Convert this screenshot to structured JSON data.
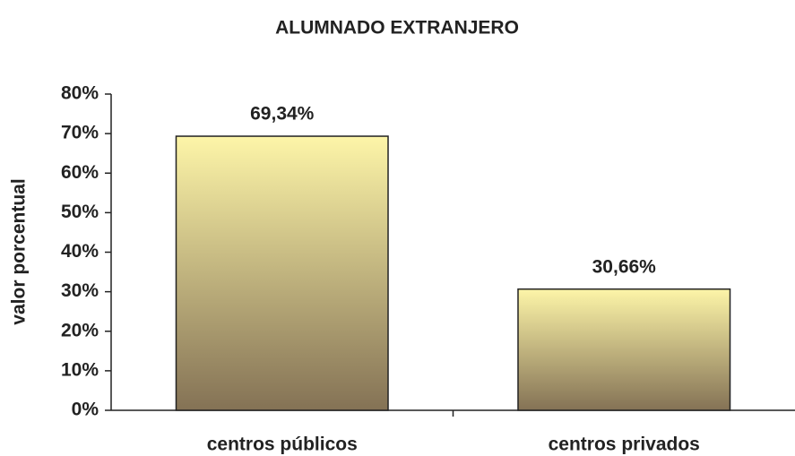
{
  "chart_data": {
    "type": "bar",
    "title": "ALUMNADO EXTRANJERO",
    "ylabel": "valor porcentual",
    "categories": [
      "centros públicos",
      "centros privados"
    ],
    "values": [
      69.34,
      30.66
    ],
    "value_labels": [
      "69,34%",
      "30,66%"
    ],
    "color": [
      "#fdf5a8",
      "#847255"
    ],
    "ylim": [
      0,
      80
    ],
    "yticks": [
      {
        "value": 0,
        "label": "0%"
      },
      {
        "value": 10,
        "label": "10%"
      },
      {
        "value": 20,
        "label": "20%"
      },
      {
        "value": 30,
        "label": "30%"
      },
      {
        "value": 40,
        "label": "40%"
      },
      {
        "value": 50,
        "label": "50%"
      },
      {
        "value": 60,
        "label": "60%"
      },
      {
        "value": 70,
        "label": "70%"
      },
      {
        "value": 80,
        "label": "80%"
      }
    ],
    "grid": false
  }
}
